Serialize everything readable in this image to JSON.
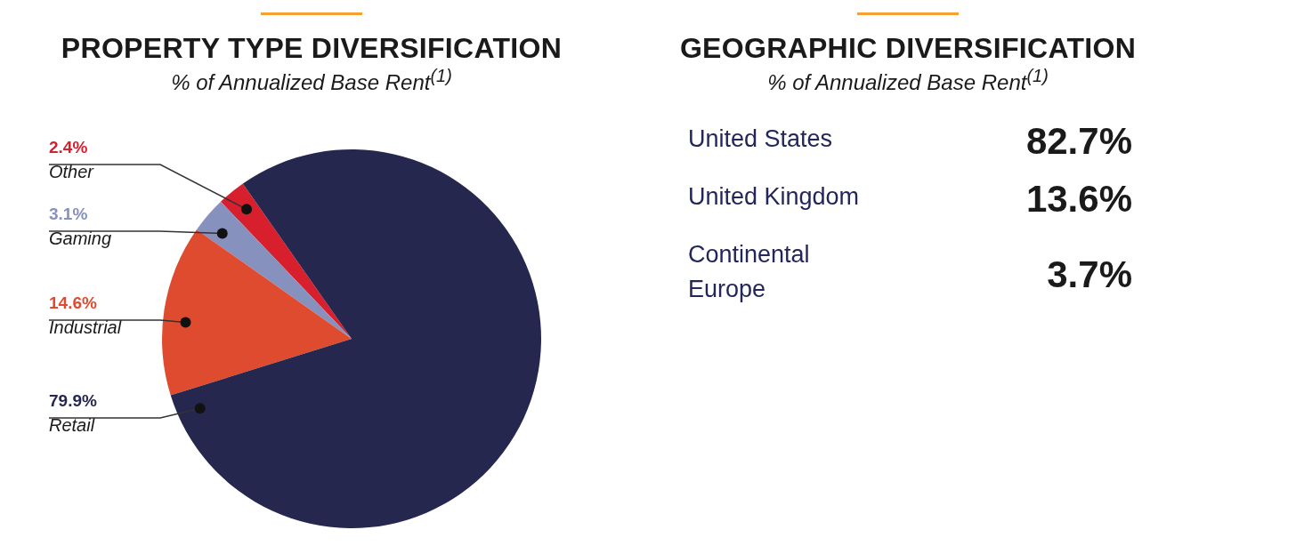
{
  "chart_data": [
    {
      "type": "pie",
      "title": "PROPERTY TYPE DIVERSIFICATION",
      "subtitle": "% of Annualized Base Rent$^{(1)}$",
      "categories": [
        "Other",
        "Gaming",
        "Industrial",
        "Retail"
      ],
      "values": [
        2.4,
        3.1,
        14.6,
        79.9
      ],
      "colors": [
        "#d81f2e",
        "#8791bd",
        "#df4b2f",
        "#25274f"
      ],
      "value_labels": [
        "2.4%",
        "3.1%",
        "14.6%",
        "79.9%"
      ]
    },
    {
      "type": "other",
      "title": "GEOGRAPHIC DIVERSIFICATION",
      "subtitle": "% of Annualized Base Rent$^{(1)}$",
      "categories": [
        "United States",
        "United Kingdom",
        "Continental Europe"
      ],
      "values": [
        82.7,
        13.6,
        3.7
      ],
      "value_labels": [
        "82.7%",
        "13.6%",
        "3.7%"
      ]
    }
  ]
}
